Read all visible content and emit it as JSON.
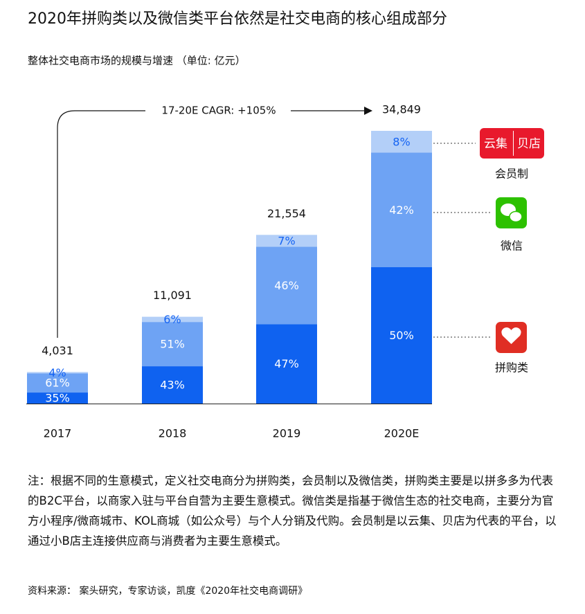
{
  "chart_data": {
    "type": "bar",
    "title": "2020年拼购类以及微信类平台依然是社交电商的核心组成部分",
    "subtitle": "整体社交电商市场的规模与增速 （单位: 亿元）",
    "categories": [
      "2017",
      "2018",
      "2019",
      "2020E"
    ],
    "totals": [
      4031,
      11091,
      21554,
      34849
    ],
    "total_labels": [
      "4,031",
      "11,091",
      "21,554",
      "34,849"
    ],
    "series": [
      {
        "name": "拼购类",
        "color": "#0f62f0",
        "label_color": "#ffffff",
        "values": [
          35,
          43,
          47,
          50
        ],
        "value_labels": [
          "35%",
          "43%",
          "47%",
          "50%"
        ]
      },
      {
        "name": "微信",
        "color": "#6ea3f4",
        "label_color": "#ffffff",
        "values": [
          61,
          51,
          46,
          42
        ],
        "value_labels": [
          "61%",
          "51%",
          "46%",
          "42%"
        ]
      },
      {
        "name": "会员制",
        "color": "#b3cff8",
        "label_color": "#1463f3",
        "values": [
          4,
          6,
          7,
          8
        ],
        "value_labels": [
          "4%",
          "6%",
          "7%",
          "8%"
        ]
      }
    ],
    "brands": [
      "云集",
      "贝店"
    ],
    "annotation": "17-20E CAGR: +105%"
  },
  "note": "注：根据不同的生意模式，定义社交电商分为拼购类，会员制以及微信类，拼购类主要是以拼多多为代表的B2C平台，以商家入驻与平台自营为主要生意模式。微信类是指基于微信生态的社交电商，主要分为官方小程序/微商城市、KOL商城（如公众号）与个人分销及代购。会员制是以云集、贝店为代表的平台，以通过小B店主连接供应商与消费者为主要生意模式。",
  "source": "资料来源： 案头研究，专家访谈，凯度《2020年社交电商调研》"
}
